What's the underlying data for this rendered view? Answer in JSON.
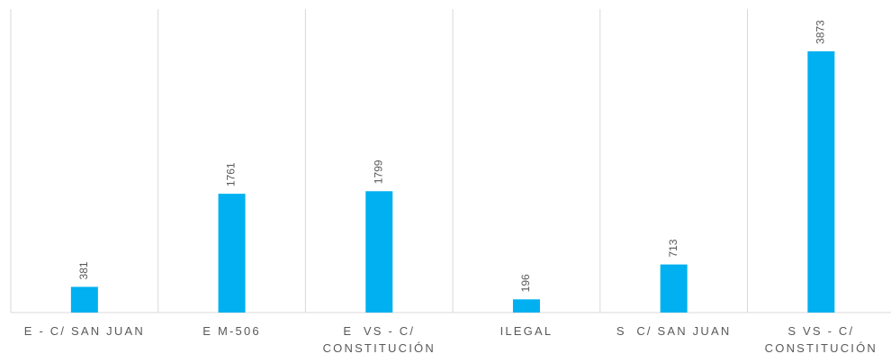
{
  "chart_data": {
    "type": "bar",
    "categories": [
      "E - C/ SAN JUAN",
      "E M-506",
      "E  VS - C/ CONSTITUCIÓN",
      "ILEGAL",
      "S  C/ SAN JUAN",
      "S VS - C/ CONSTITUCIÓN"
    ],
    "values": [
      381,
      1761,
      1799,
      196,
      713,
      3873
    ],
    "color": "#00b0f0",
    "ylim": [
      0,
      4500
    ]
  }
}
